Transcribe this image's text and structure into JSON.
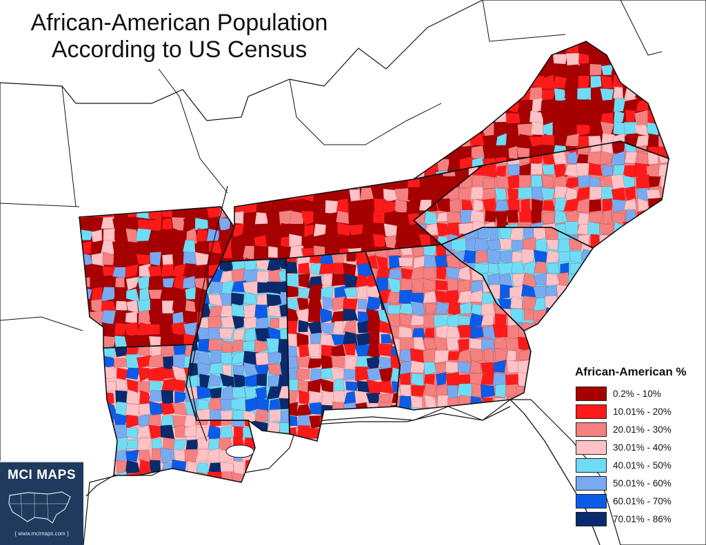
{
  "title": {
    "line1": "African-American Population",
    "line2": "According to US Census"
  },
  "legend": {
    "title": "African-American %",
    "items": [
      {
        "label": "0.2% - 10%",
        "color": "#a80000"
      },
      {
        "label": "10.01% - 20%",
        "color": "#ff1a1a"
      },
      {
        "label": "20.01% - 30%",
        "color": "#f58080"
      },
      {
        "label": "30.01% - 40%",
        "color": "#ffc2c6"
      },
      {
        "label": "40.01% - 50%",
        "color": "#6fdcf5"
      },
      {
        "label": "50.01% - 60%",
        "color": "#78aaf2"
      },
      {
        "label": "60.01% - 70%",
        "color": "#0a5ce8"
      },
      {
        "label": "70.01% - 86%",
        "color": "#0a2a6e"
      }
    ]
  },
  "logo": {
    "name": "MCI MAPS",
    "url": "{ www.mcimaps.com }"
  },
  "map_regions": [
    {
      "region": "Arkansas",
      "color_class": 0
    },
    {
      "region": "Louisiana",
      "color_class": 3
    },
    {
      "region": "Mississippi",
      "color_class": 4
    },
    {
      "region": "Alabama",
      "color_class": 3
    },
    {
      "region": "Georgia",
      "color_class": 2
    },
    {
      "region": "South Carolina",
      "color_class": 4
    },
    {
      "region": "North Carolina",
      "color_class": 2
    },
    {
      "region": "Tennessee",
      "color_class": 0
    },
    {
      "region": "Virginia",
      "color_class": 0
    }
  ]
}
